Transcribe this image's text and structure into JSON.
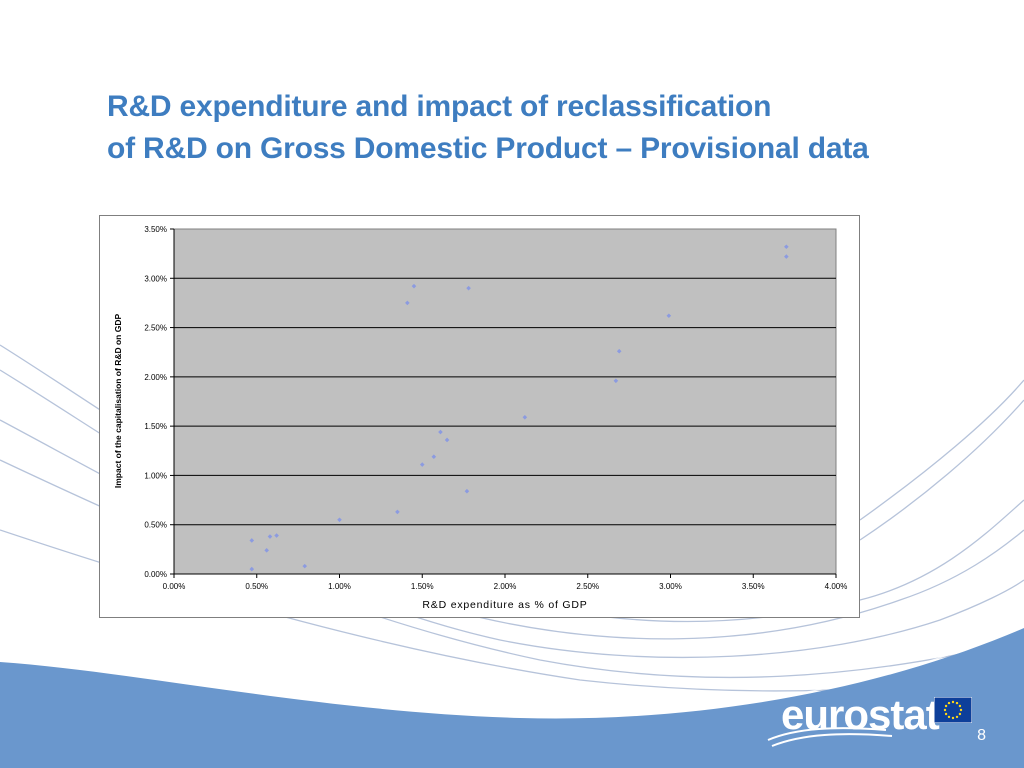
{
  "slide": {
    "title_line1": "R&D expenditure and impact of reclassification",
    "title_line2": "of R&D on Gross Domestic Product – Provisional data",
    "logo_text": "eurostat",
    "page_number": "8",
    "colors": {
      "title": "#3E7DC0",
      "footer_band": "#6A97CD",
      "plot_area": "#C0C0C0",
      "marker": "#8C9BE0"
    }
  },
  "chart_data": {
    "type": "scatter",
    "title": "",
    "xlabel": "R&D expenditure as % of GDP",
    "ylabel": "Impact of the capitalisation of R&D on GDP",
    "xlim": [
      0,
      4
    ],
    "ylim": [
      0,
      3.5
    ],
    "x_ticks": [
      "0.00%",
      "0.50%",
      "1.00%",
      "1.50%",
      "2.00%",
      "2.50%",
      "3.00%",
      "3.50%",
      "4.00%"
    ],
    "y_ticks": [
      "0.00%",
      "0.50%",
      "1.00%",
      "1.50%",
      "2.00%",
      "2.50%",
      "3.00%",
      "3.50%"
    ],
    "grid": "horizontal",
    "legend": "none",
    "points": [
      {
        "x": 0.47,
        "y": 0.05
      },
      {
        "x": 0.47,
        "y": 0.34
      },
      {
        "x": 0.56,
        "y": 0.24
      },
      {
        "x": 0.58,
        "y": 0.38
      },
      {
        "x": 0.62,
        "y": 0.39
      },
      {
        "x": 0.79,
        "y": 0.08
      },
      {
        "x": 1.0,
        "y": 0.55
      },
      {
        "x": 1.35,
        "y": 0.63
      },
      {
        "x": 1.41,
        "y": 2.75
      },
      {
        "x": 1.45,
        "y": 2.92
      },
      {
        "x": 1.5,
        "y": 1.11
      },
      {
        "x": 1.57,
        "y": 1.19
      },
      {
        "x": 1.61,
        "y": 1.44
      },
      {
        "x": 1.65,
        "y": 1.36
      },
      {
        "x": 1.77,
        "y": 0.84
      },
      {
        "x": 1.78,
        "y": 2.9
      },
      {
        "x": 2.12,
        "y": 1.59
      },
      {
        "x": 2.67,
        "y": 1.96
      },
      {
        "x": 2.69,
        "y": 2.26
      },
      {
        "x": 2.99,
        "y": 2.62
      },
      {
        "x": 3.7,
        "y": 3.32
      },
      {
        "x": 3.7,
        "y": 3.22
      }
    ]
  }
}
